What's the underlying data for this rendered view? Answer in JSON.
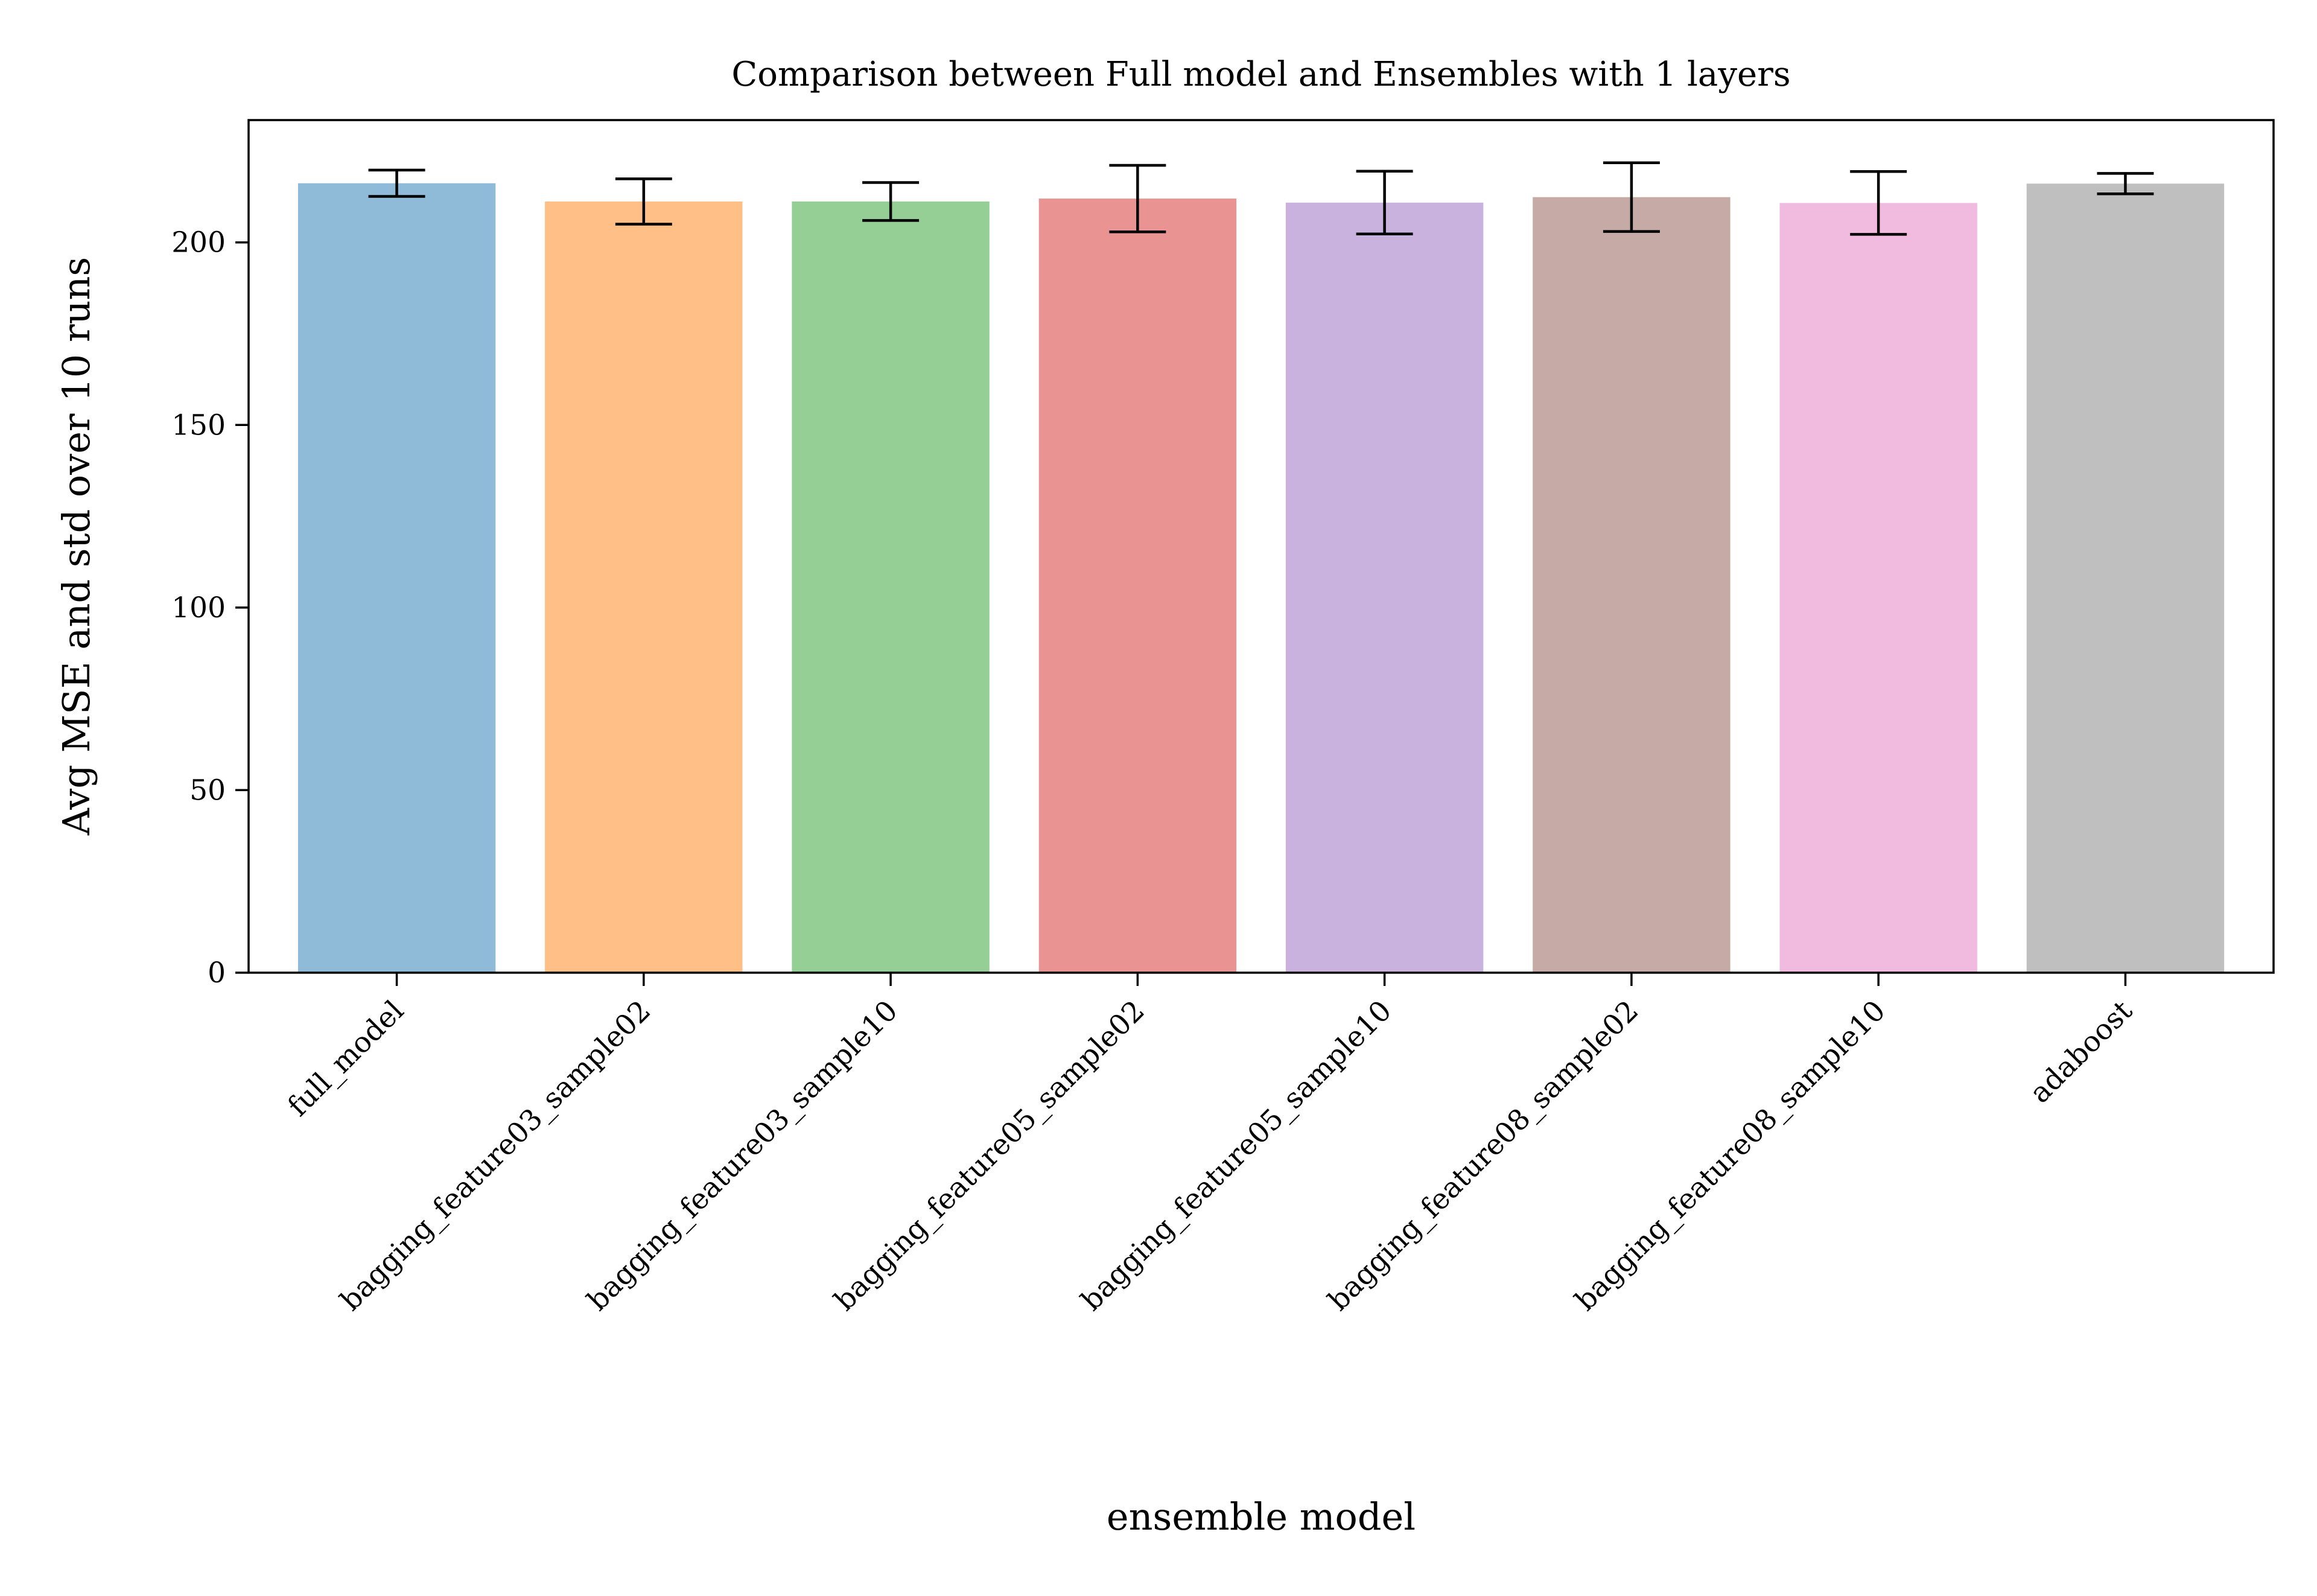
{
  "chart_data": {
    "type": "bar",
    "title": "Comparison between Full model and Ensembles with 1 layers",
    "xlabel": "ensemble model",
    "ylabel": "Avg MSE and std over 10 runs",
    "categories": [
      "full_model",
      "bagging_feature03_sample02",
      "bagging_feature03_sample10",
      "bagging_feature05_sample02",
      "bagging_feature05_sample10",
      "bagging_feature08_sample02",
      "bagging_feature08_sample10",
      "adaboost"
    ],
    "values": [
      216.2,
      211.2,
      211.2,
      212.0,
      210.9,
      212.4,
      210.8,
      216.1
    ],
    "errors": [
      3.6,
      6.2,
      5.2,
      9.1,
      8.6,
      9.4,
      8.6,
      2.8
    ],
    "colors": [
      "#1f77b4",
      "#ff7f0e",
      "#2ca02c",
      "#d62728",
      "#9467bd",
      "#8c564b",
      "#e377c2",
      "#7f7f7f"
    ],
    "bar_opacity": 0.5,
    "ylim": [
      0,
      233.5
    ],
    "yticks": [
      0,
      50,
      100,
      150,
      200
    ],
    "grid": false,
    "legend": "none"
  }
}
